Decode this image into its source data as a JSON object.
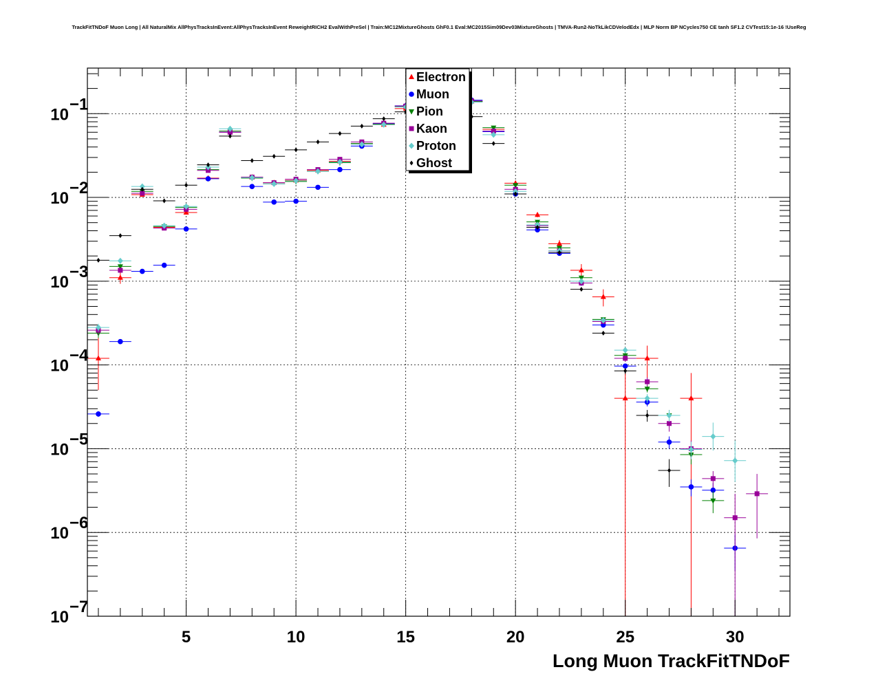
{
  "chart_data": {
    "type": "scatter",
    "title": "TrackFitTNDoF Muon Long | All NaturalMix AllPhysTracksInEvent:AllPhysTracksInEvent ReweightRICH2 EvalWithPreSel | Train:MC12MixtureGhosts GhF0.1 Eval:MC2015Sim09Dev03MixtureGhosts | TMVA-Run2-NoTkLikCDVelodEdx | MLP Norm BP NCycles750 CE tanh SF1.2 CVTest15:1e-16 !UseReg",
    "xlabel": "Long Muon TrackFitTNDoF",
    "ylabel": "",
    "xlim": [
      0.5,
      32.5
    ],
    "ylim": [
      1e-07,
      0.35
    ],
    "yscale": "log",
    "grid": true,
    "legend_position": "top-center",
    "x_ticks": [
      5,
      10,
      15,
      20,
      25,
      30
    ],
    "x_tick_labels": [
      "5",
      "10",
      "15",
      "20",
      "25",
      "30"
    ],
    "y_ticks": [
      1e-07,
      1e-06,
      1e-05,
      0.0001,
      0.001,
      0.01,
      0.1
    ],
    "y_tick_labels": [
      "10",
      "10",
      "10",
      "10",
      "10",
      "10",
      "10"
    ],
    "y_tick_exponents": [
      "−7",
      "−6",
      "−5",
      "−4",
      "−3",
      "−2",
      "−1"
    ],
    "series": [
      {
        "name": "Electron",
        "color": "#ff0000",
        "marker": "triangle-up",
        "points": [
          [
            1,
            0.00012,
            5e-05,
            0.00021
          ],
          [
            2,
            0.0011,
            0.00093,
            0.0013
          ],
          [
            3,
            0.0108,
            0.0105,
            0.0111
          ],
          [
            4,
            0.0044,
            0.0042,
            0.0046
          ],
          [
            5,
            0.0066,
            0.0064,
            0.0068
          ],
          [
            6,
            0.017,
            0.0167,
            0.0173
          ],
          [
            7,
            0.06,
            0.059,
            0.061
          ],
          [
            8,
            0.0175,
            0.0172,
            0.0178
          ],
          [
            9,
            0.015,
            0.0147,
            0.0153
          ],
          [
            10,
            0.016,
            0.0157,
            0.0163
          ],
          [
            11,
            0.021,
            0.0207,
            0.0213
          ],
          [
            12,
            0.027,
            0.0266,
            0.0274
          ],
          [
            13,
            0.044,
            0.0435,
            0.0445
          ],
          [
            14,
            0.074,
            0.073,
            0.075
          ],
          [
            15,
            0.115,
            0.114,
            0.116
          ],
          [
            16,
            0.145,
            0.144,
            0.146
          ],
          [
            17,
            0.155,
            0.154,
            0.156
          ],
          [
            18,
            0.14,
            0.139,
            0.141
          ],
          [
            19,
            0.065,
            0.064,
            0.066
          ],
          [
            20,
            0.0148,
            0.0144,
            0.0152
          ],
          [
            21,
            0.0062,
            0.0058,
            0.0066
          ],
          [
            22,
            0.0028,
            0.0025,
            0.0031
          ],
          [
            23,
            0.00135,
            0.0011,
            0.0016
          ],
          [
            24,
            0.00065,
            0.0005,
            0.0008
          ],
          [
            25,
            4e-05,
            1e-07,
            8e-05
          ],
          [
            26,
            0.00012,
            7e-05,
            0.00017
          ],
          [
            28,
            4e-05,
            1e-07,
            8e-05
          ]
        ]
      },
      {
        "name": "Muon",
        "color": "#0000ff",
        "marker": "circle",
        "points": [
          [
            1,
            2.6e-05,
            2.4e-05,
            2.8e-05
          ],
          [
            2,
            0.00019,
            0.00018,
            0.000195
          ],
          [
            3,
            0.00131,
            0.00128,
            0.00134
          ],
          [
            4,
            0.00155,
            0.00152,
            0.00158
          ],
          [
            5,
            0.0042,
            0.0041,
            0.0043
          ],
          [
            6,
            0.0167,
            0.0165,
            0.0169
          ],
          [
            7,
            0.06,
            0.0595,
            0.0605
          ],
          [
            8,
            0.0135,
            0.0133,
            0.0137
          ],
          [
            9,
            0.0088,
            0.0087,
            0.0089
          ],
          [
            10,
            0.009,
            0.0089,
            0.0091
          ],
          [
            11,
            0.0132,
            0.013,
            0.0134
          ],
          [
            12,
            0.0215,
            0.0213,
            0.0217
          ],
          [
            13,
            0.041,
            0.0407,
            0.0413
          ],
          [
            14,
            0.076,
            0.0755,
            0.0765
          ],
          [
            15,
            0.124,
            0.123,
            0.125
          ],
          [
            16,
            0.155,
            0.154,
            0.156
          ],
          [
            17,
            0.158,
            0.157,
            0.159
          ],
          [
            18,
            0.145,
            0.144,
            0.146
          ],
          [
            19,
            0.061,
            0.0605,
            0.0615
          ],
          [
            20,
            0.011,
            0.0108,
            0.0112
          ],
          [
            21,
            0.0041,
            0.004,
            0.0042
          ],
          [
            22,
            0.00215,
            0.0021,
            0.0022
          ],
          [
            23,
            0.00095,
            0.0009,
            0.001
          ],
          [
            24,
            0.0003,
            0.00028,
            0.00032
          ],
          [
            25,
            9.7e-05,
            9e-05,
            0.000104
          ],
          [
            26,
            3.6e-05,
            3.2e-05,
            4e-05
          ],
          [
            27,
            1.2e-05,
            1e-05,
            1.4e-05
          ],
          [
            28,
            3.5e-06,
            2.7e-06,
            4.3e-06
          ],
          [
            29,
            3.2e-06,
            2.5e-06,
            3.9e-06
          ],
          [
            30,
            6.5e-07,
            3.5e-07,
            9.5e-07
          ]
        ]
      },
      {
        "name": "Pion",
        "color": "#008000",
        "marker": "triangle-down",
        "points": [
          [
            1,
            0.00024,
            0.00021,
            0.00027
          ],
          [
            2,
            0.0015,
            0.0014,
            0.0016
          ],
          [
            3,
            0.0118,
            0.0116,
            0.012
          ],
          [
            4,
            0.0045,
            0.0044,
            0.0046
          ],
          [
            5,
            0.0076,
            0.0075,
            0.0077
          ],
          [
            6,
            0.0215,
            0.0213,
            0.0217
          ],
          [
            7,
            0.062,
            0.0615,
            0.0625
          ],
          [
            8,
            0.017,
            0.0168,
            0.0172
          ],
          [
            9,
            0.0145,
            0.0143,
            0.0147
          ],
          [
            10,
            0.0155,
            0.0153,
            0.0157
          ],
          [
            11,
            0.0205,
            0.0203,
            0.0207
          ],
          [
            12,
            0.026,
            0.0258,
            0.0262
          ],
          [
            13,
            0.044,
            0.0437,
            0.0443
          ],
          [
            14,
            0.075,
            0.0745,
            0.0755
          ],
          [
            15,
            0.122,
            0.121,
            0.123
          ],
          [
            16,
            0.15,
            0.149,
            0.151
          ],
          [
            17,
            0.154,
            0.153,
            0.155
          ],
          [
            18,
            0.14,
            0.139,
            0.141
          ],
          [
            19,
            0.068,
            0.0675,
            0.0685
          ],
          [
            20,
            0.014,
            0.0138,
            0.0142
          ],
          [
            21,
            0.0051,
            0.005,
            0.0052
          ],
          [
            22,
            0.0025,
            0.0024,
            0.0026
          ],
          [
            23,
            0.0011,
            0.00105,
            0.00115
          ],
          [
            24,
            0.00035,
            0.00033,
            0.00037
          ],
          [
            25,
            0.00013,
            0.00012,
            0.00014
          ],
          [
            26,
            5.2e-05,
            4.7e-05,
            5.7e-05
          ],
          [
            27,
            2.5e-05,
            2.1e-05,
            2.9e-05
          ],
          [
            28,
            8.5e-06,
            6.5e-06,
            1.05e-05
          ],
          [
            29,
            2.4e-06,
            1.7e-06,
            3.1e-06
          ]
        ]
      },
      {
        "name": "Kaon",
        "color": "#990099",
        "marker": "square",
        "points": [
          [
            1,
            0.00026,
            0.00023,
            0.00029
          ],
          [
            2,
            0.00135,
            0.00127,
            0.00143
          ],
          [
            3,
            0.0112,
            0.011,
            0.0114
          ],
          [
            4,
            0.0043,
            0.0042,
            0.0044
          ],
          [
            5,
            0.0072,
            0.0071,
            0.0073
          ],
          [
            6,
            0.021,
            0.0208,
            0.0212
          ],
          [
            7,
            0.06,
            0.0595,
            0.0605
          ],
          [
            8,
            0.0175,
            0.0173,
            0.0177
          ],
          [
            9,
            0.015,
            0.0148,
            0.0152
          ],
          [
            10,
            0.0165,
            0.0163,
            0.0167
          ],
          [
            11,
            0.0215,
            0.0213,
            0.0217
          ],
          [
            12,
            0.0285,
            0.0283,
            0.0287
          ],
          [
            13,
            0.046,
            0.0457,
            0.0463
          ],
          [
            14,
            0.077,
            0.0765,
            0.0775
          ],
          [
            15,
            0.123,
            0.122,
            0.124
          ],
          [
            16,
            0.152,
            0.151,
            0.153
          ],
          [
            17,
            0.155,
            0.154,
            0.156
          ],
          [
            18,
            0.142,
            0.141,
            0.143
          ],
          [
            19,
            0.062,
            0.0615,
            0.0625
          ],
          [
            20,
            0.0125,
            0.0123,
            0.0127
          ],
          [
            21,
            0.0046,
            0.0045,
            0.0047
          ],
          [
            22,
            0.0023,
            0.0022,
            0.0024
          ],
          [
            23,
            0.00095,
            0.0009,
            0.001
          ],
          [
            24,
            0.00033,
            0.00031,
            0.00035
          ],
          [
            25,
            0.00012,
            0.00011,
            0.00013
          ],
          [
            26,
            6.3e-05,
            5.5e-05,
            7.1e-05
          ],
          [
            27,
            2e-05,
            1.6e-05,
            2.4e-05
          ],
          [
            28,
            1e-05,
            7.5e-06,
            1.25e-05
          ],
          [
            29,
            4.4e-06,
            3.4e-06,
            5.4e-06
          ],
          [
            30,
            1.5e-06,
            1e-07,
            2.9e-06
          ],
          [
            31,
            2.9e-06,
            8.5e-07,
            5e-06
          ]
        ]
      },
      {
        "name": "Proton",
        "color": "#66cccc",
        "marker": "diamond",
        "points": [
          [
            1,
            0.00028,
            0.00025,
            0.00031
          ],
          [
            2,
            0.00175,
            0.00165,
            0.00185
          ],
          [
            3,
            0.0135,
            0.0133,
            0.0137
          ],
          [
            4,
            0.0046,
            0.0045,
            0.0047
          ],
          [
            5,
            0.0078,
            0.0077,
            0.0079
          ],
          [
            6,
            0.023,
            0.0228,
            0.0232
          ],
          [
            7,
            0.066,
            0.0655,
            0.0665
          ],
          [
            8,
            0.0172,
            0.017,
            0.0174
          ],
          [
            9,
            0.0145,
            0.0143,
            0.0147
          ],
          [
            10,
            0.0158,
            0.0156,
            0.016
          ],
          [
            11,
            0.0205,
            0.0203,
            0.0207
          ],
          [
            12,
            0.0265,
            0.0263,
            0.0267
          ],
          [
            13,
            0.043,
            0.0427,
            0.0433
          ],
          [
            14,
            0.074,
            0.0735,
            0.0745
          ],
          [
            15,
            0.12,
            0.119,
            0.121
          ],
          [
            16,
            0.148,
            0.147,
            0.149
          ],
          [
            17,
            0.15,
            0.149,
            0.151
          ],
          [
            18,
            0.137,
            0.136,
            0.138
          ],
          [
            19,
            0.056,
            0.0555,
            0.0565
          ],
          [
            20,
            0.0118,
            0.0116,
            0.012
          ],
          [
            21,
            0.0047,
            0.0046,
            0.0048
          ],
          [
            22,
            0.0023,
            0.0022,
            0.0024
          ],
          [
            23,
            0.001,
            0.00095,
            0.00105
          ],
          [
            24,
            0.00034,
            0.00032,
            0.00036
          ],
          [
            25,
            0.00015,
            0.00014,
            0.00016
          ],
          [
            26,
            4e-05,
            3.5e-05,
            4.5e-05
          ],
          [
            27,
            2.5e-05,
            2.1e-05,
            2.9e-05
          ],
          [
            28,
            9.8e-06,
            7.5e-06,
            1.21e-05
          ],
          [
            29,
            1.4e-05,
            9.5e-06,
            2.05e-05
          ],
          [
            30,
            7.2e-06,
            4e-06,
            1.25e-05
          ]
        ]
      },
      {
        "name": "Ghost",
        "color": "#000000",
        "marker": "diamond-small",
        "points": [
          [
            1,
            0.00178,
            0.00172,
            0.00184
          ],
          [
            2,
            0.0035,
            0.0034,
            0.0036
          ],
          [
            3,
            0.0125,
            0.0123,
            0.0127
          ],
          [
            4,
            0.0091,
            0.009,
            0.0092
          ],
          [
            5,
            0.014,
            0.0138,
            0.0142
          ],
          [
            6,
            0.0245,
            0.0242,
            0.0248
          ],
          [
            7,
            0.054,
            0.0535,
            0.0545
          ],
          [
            8,
            0.0275,
            0.0272,
            0.0278
          ],
          [
            9,
            0.031,
            0.0307,
            0.0313
          ],
          [
            10,
            0.037,
            0.0367,
            0.0373
          ],
          [
            11,
            0.046,
            0.0456,
            0.0464
          ],
          [
            12,
            0.058,
            0.0575,
            0.0585
          ],
          [
            13,
            0.071,
            0.0705,
            0.0715
          ],
          [
            14,
            0.087,
            0.0865,
            0.0875
          ],
          [
            15,
            0.105,
            0.1045,
            0.1055
          ],
          [
            16,
            0.118,
            0.117,
            0.119
          ],
          [
            17,
            0.11,
            0.109,
            0.111
          ],
          [
            18,
            0.092,
            0.091,
            0.093
          ],
          [
            19,
            0.044,
            0.0435,
            0.0445
          ],
          [
            20,
            0.011,
            0.0108,
            0.0112
          ],
          [
            21,
            0.0044,
            0.0043,
            0.0045
          ],
          [
            22,
            0.0022,
            0.0021,
            0.0023
          ],
          [
            23,
            0.0008,
            0.00077,
            0.00083
          ],
          [
            24,
            0.00024,
            0.00023,
            0.00025
          ],
          [
            25,
            8.5e-05,
            7.8e-05,
            9.2e-05
          ],
          [
            26,
            2.5e-05,
            2.1e-05,
            2.9e-05
          ],
          [
            27,
            5.5e-06,
            3.5e-06,
            7.5e-06
          ]
        ]
      }
    ]
  }
}
